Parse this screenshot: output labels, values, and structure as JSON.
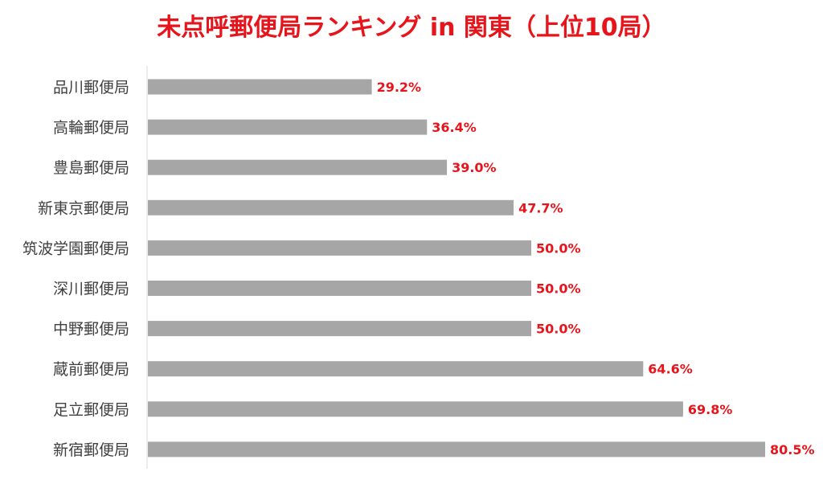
{
  "chart_data": {
    "type": "bar",
    "orientation": "horizontal",
    "title": "未点呼郵便局ランキング in 関東（上位10局）",
    "categories": [
      "品川郵便局",
      "高輪郵便局",
      "豊島郵便局",
      "新東京郵便局",
      "筑波学園郵便局",
      "深川郵便局",
      "中野郵便局",
      "蔵前郵便局",
      "足立郵便局",
      "新宿郵便局"
    ],
    "values": [
      29.2,
      36.4,
      39.0,
      47.7,
      50.0,
      50.0,
      50.0,
      64.6,
      69.8,
      80.5
    ],
    "value_labels": [
      "29.2%",
      "36.4%",
      "39.0%",
      "47.7%",
      "50.0%",
      "50.0%",
      "50.0%",
      "64.6%",
      "69.8%",
      "80.5%"
    ],
    "xlim": [
      0,
      80.5
    ],
    "grid": false,
    "legend": "none"
  },
  "colors": {
    "title": "#e8141b",
    "bar": "#a6a6a6",
    "value_label": "#e8141b",
    "axis": "#d9d9d9",
    "category_label": "#404040"
  }
}
